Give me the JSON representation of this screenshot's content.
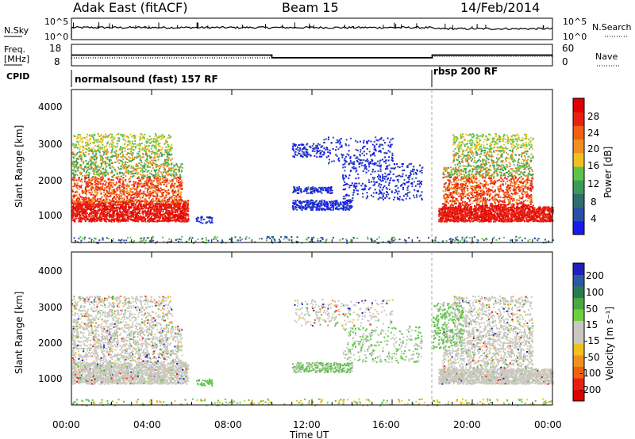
{
  "header": {
    "title": "Adak East (fitACF)",
    "beam": "Beam 15",
    "date": "14/Feb/2014"
  },
  "noise_panel": {
    "left_label": "N.Sky",
    "right_label": "N.Search",
    "left_ticks": [
      "10^5",
      "10^0"
    ],
    "right_ticks": [
      "10^5",
      "10^0"
    ]
  },
  "freq_panel": {
    "left_label_line1": "Freq.",
    "left_label_line2": "[MHz]",
    "right_label": "Nave",
    "left_ticks": [
      "18",
      "8"
    ],
    "right_ticks": [
      "60",
      "0"
    ]
  },
  "cpid": {
    "label": "CPID",
    "mode1": "normalsound (fast) 157 RF",
    "mode2": "rbsp 200 RF"
  },
  "power_panel": {
    "ylabel": "Slant Range [km]",
    "y_ticks": [
      "4000",
      "3000",
      "2000",
      "1000"
    ],
    "colorbar_label": "Power [dB]",
    "colorbar_ticks": [
      "28",
      "24",
      "20",
      "16",
      "12",
      "8",
      "4"
    ],
    "colors": [
      "#1a1aee",
      "#2a4fa8",
      "#2e6e6e",
      "#3a9a5a",
      "#5fc34a",
      "#f0c020",
      "#f09020",
      "#f06010",
      "#e82010",
      "#e00000"
    ]
  },
  "velocity_panel": {
    "ylabel": "Slant Range [km]",
    "y_ticks": [
      "4000",
      "3000",
      "2000",
      "1000"
    ],
    "colorbar_label": "Velocity [m s⁻¹]",
    "colorbar_ticks": [
      "200",
      "100",
      "50",
      "15",
      "-15",
      "-50",
      "-100",
      "-200"
    ],
    "colors": [
      "#2020c0",
      "#2a5aa0",
      "#2a7a50",
      "#4aa840",
      "#6ed040",
      "#c8c8c0",
      "#c8c8c0",
      "#f0c020",
      "#f09020",
      "#f06010",
      "#e82010",
      "#e00000"
    ]
  },
  "x_axis": {
    "label": "Time UT",
    "ticks": [
      "00:00",
      "04:00",
      "08:00",
      "12:00",
      "16:00",
      "20:00",
      "00:00"
    ]
  },
  "chart_data": {
    "type": "heatmap",
    "x_range_hours": [
      0,
      24
    ],
    "y_range_km": [
      180,
      4500
    ],
    "mode_change_hour": 18,
    "freq_steps": [
      {
        "start": 0,
        "end": 10,
        "freq": 12
      },
      {
        "start": 10,
        "end": 18,
        "freq": 10.5
      },
      {
        "start": 18,
        "end": 24,
        "freq": 12
      }
    ]
  }
}
